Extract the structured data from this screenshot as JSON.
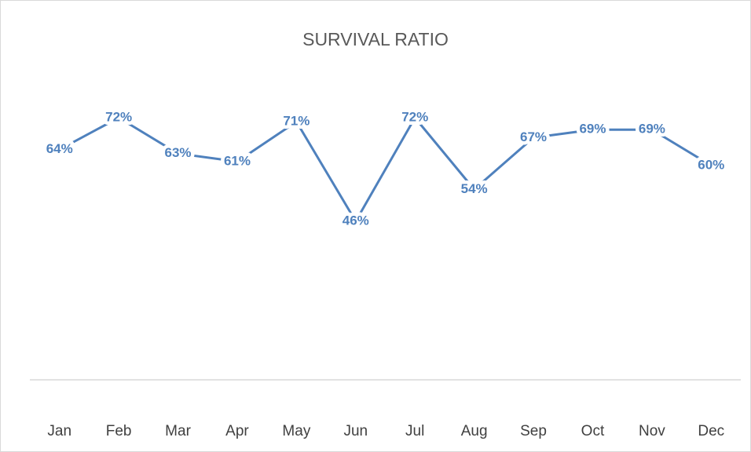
{
  "chart_data": {
    "type": "line",
    "title": "SURVIVAL RATIO",
    "categories": [
      "Jan",
      "Feb",
      "Mar",
      "Apr",
      "May",
      "Jun",
      "Jul",
      "Aug",
      "Sep",
      "Oct",
      "Nov",
      "Dec"
    ],
    "values": [
      64,
      72,
      63,
      61,
      71,
      46,
      72,
      54,
      67,
      69,
      69,
      60
    ],
    "value_labels": [
      "64%",
      "72%",
      "63%",
      "61%",
      "71%",
      "46%",
      "72%",
      "54%",
      "67%",
      "69%",
      "69%",
      "60%"
    ],
    "color": "#4f81bd"
  }
}
